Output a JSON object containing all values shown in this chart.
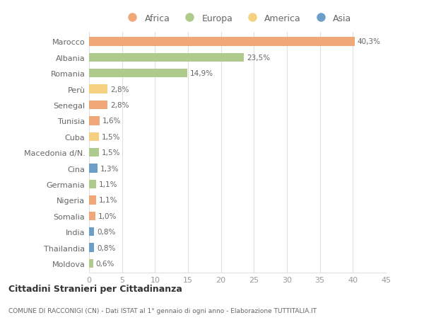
{
  "countries": [
    "Marocco",
    "Albania",
    "Romania",
    "Perù",
    "Senegal",
    "Tunisia",
    "Cuba",
    "Macedonia d/N.",
    "Cina",
    "Germania",
    "Nigeria",
    "Somalia",
    "India",
    "Thailandia",
    "Moldova"
  ],
  "values": [
    40.3,
    23.5,
    14.9,
    2.8,
    2.8,
    1.6,
    1.5,
    1.5,
    1.3,
    1.1,
    1.1,
    1.0,
    0.8,
    0.8,
    0.6
  ],
  "labels": [
    "40,3%",
    "23,5%",
    "14,9%",
    "2,8%",
    "2,8%",
    "1,6%",
    "1,5%",
    "1,5%",
    "1,3%",
    "1,1%",
    "1,1%",
    "1,0%",
    "0,8%",
    "0,8%",
    "0,6%"
  ],
  "continents": [
    "Africa",
    "Europa",
    "Europa",
    "America",
    "Africa",
    "Africa",
    "America",
    "Europa",
    "Asia",
    "Europa",
    "Africa",
    "Africa",
    "Asia",
    "Asia",
    "Europa"
  ],
  "continent_colors": {
    "Africa": "#F0A878",
    "Europa": "#AECA8C",
    "America": "#F5D080",
    "Asia": "#6B9EC8"
  },
  "legend_order": [
    "Africa",
    "Europa",
    "America",
    "Asia"
  ],
  "bg_color": "#ffffff",
  "grid_color": "#e0e0e0",
  "title1": "Cittadini Stranieri per Cittadinanza",
  "title2": "COMUNE DI RACCONIGI (CN) - Dati ISTAT al 1° gennaio di ogni anno - Elaborazione TUTTITALIA.IT",
  "xlim": [
    0,
    45
  ],
  "xticks": [
    0,
    5,
    10,
    15,
    20,
    25,
    30,
    35,
    40,
    45
  ],
  "bar_height": 0.55
}
